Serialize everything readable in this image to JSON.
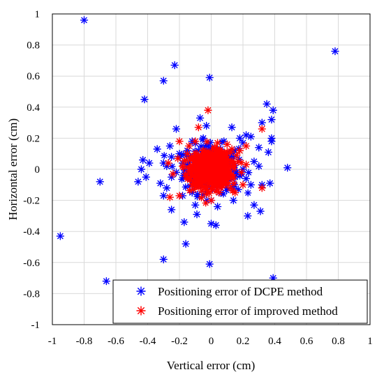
{
  "chart_data": {
    "type": "scatter",
    "xlabel": "Vertical error (cm)",
    "ylabel": "Horizontal error (cm)",
    "xlim": [
      -1,
      1
    ],
    "ylim": [
      -1,
      1
    ],
    "x_ticks": [
      "-1",
      "-0.8",
      "-0.6",
      "-0.4",
      "-0.2",
      "0",
      "0.2",
      "0.4",
      "0.6",
      "0.8",
      "1"
    ],
    "y_ticks": [
      "1",
      "0.8",
      "0.6",
      "0.4",
      "0.2",
      "0",
      "-0.2",
      "-0.4",
      "-0.6",
      "-0.8",
      "-1"
    ],
    "grid": true,
    "legend_position": "bottom-right",
    "series": [
      {
        "name": "Positioning error of DCPE method",
        "color": "#0000ff",
        "marker": "asterisk",
        "points": [
          [
            -0.8,
            0.96
          ],
          [
            -0.23,
            0.67
          ],
          [
            -0.3,
            0.57
          ],
          [
            -0.01,
            0.59
          ],
          [
            -0.42,
            0.45
          ],
          [
            0.78,
            0.76
          ],
          [
            0.35,
            0.42
          ],
          [
            0.39,
            0.38
          ],
          [
            0.32,
            0.3
          ],
          [
            0.38,
            0.32
          ],
          [
            0.13,
            0.27
          ],
          [
            -0.22,
            0.26
          ],
          [
            0.38,
            0.2
          ],
          [
            0.38,
            0.18
          ],
          [
            0.36,
            0.11
          ],
          [
            0.48,
            0.01
          ],
          [
            -0.07,
            0.33
          ],
          [
            -0.03,
            0.28
          ],
          [
            0.22,
            0.22
          ],
          [
            0.25,
            0.21
          ],
          [
            0.18,
            0.2
          ],
          [
            0.3,
            0.14
          ],
          [
            -0.26,
            0.15
          ],
          [
            -0.34,
            0.13
          ],
          [
            -0.43,
            0.06
          ],
          [
            -0.39,
            0.04
          ],
          [
            -0.44,
            0.0
          ],
          [
            -0.3,
            0.04
          ],
          [
            -0.28,
            0.02
          ],
          [
            -0.46,
            -0.08
          ],
          [
            -0.41,
            -0.05
          ],
          [
            -0.32,
            -0.09
          ],
          [
            -0.7,
            -0.08
          ],
          [
            -0.25,
            -0.05
          ],
          [
            -0.3,
            -0.17
          ],
          [
            -0.18,
            -0.17
          ],
          [
            -0.25,
            -0.26
          ],
          [
            -0.1,
            -0.23
          ],
          [
            -0.09,
            -0.29
          ],
          [
            -0.17,
            -0.34
          ],
          [
            0.0,
            -0.35
          ],
          [
            0.03,
            -0.36
          ],
          [
            0.04,
            -0.24
          ],
          [
            0.14,
            -0.2
          ],
          [
            0.23,
            -0.3
          ],
          [
            0.27,
            -0.23
          ],
          [
            0.31,
            -0.27
          ],
          [
            0.37,
            -0.09
          ],
          [
            0.32,
            -0.1
          ],
          [
            0.25,
            -0.1
          ],
          [
            -0.16,
            -0.48
          ],
          [
            -0.3,
            -0.58
          ],
          [
            -0.01,
            -0.61
          ],
          [
            -0.66,
            -0.72
          ],
          [
            -0.95,
            -0.43
          ],
          [
            0.39,
            -0.7
          ],
          [
            0.2,
            0.17
          ],
          [
            0.15,
            0.12
          ],
          [
            -0.15,
            0.12
          ],
          [
            -0.2,
            0.1
          ],
          [
            -0.12,
            0.18
          ],
          [
            0.08,
            0.18
          ],
          [
            -0.05,
            0.2
          ],
          [
            0.27,
            0.05
          ],
          [
            0.2,
            0.0
          ],
          [
            0.22,
            -0.06
          ],
          [
            -0.22,
            -0.02
          ],
          [
            -0.18,
            0.04
          ],
          [
            0.17,
            -0.13
          ],
          [
            -0.12,
            -0.15
          ],
          [
            0.0,
            -0.2
          ],
          [
            0.1,
            -0.12
          ],
          [
            -0.08,
            0.12
          ],
          [
            0.1,
            0.1
          ],
          [
            -0.25,
            0.08
          ],
          [
            0.15,
            -0.05
          ],
          [
            0.12,
            0.05
          ],
          [
            -0.1,
            -0.08
          ],
          [
            -0.15,
            -0.05
          ],
          [
            0.05,
            -0.15
          ],
          [
            -0.02,
            0.15
          ],
          [
            0.06,
            0.13
          ],
          [
            0.3,
            0.02
          ],
          [
            -0.28,
            -0.12
          ]
        ]
      },
      {
        "name": "Positioning error of improved method",
        "color": "#ff0000",
        "marker": "asterisk",
        "points": [
          [
            -0.02,
            0.38
          ],
          [
            -0.08,
            0.27
          ],
          [
            -0.2,
            0.18
          ],
          [
            0.22,
            0.15
          ],
          [
            0.32,
            0.26
          ],
          [
            -0.27,
            0.04
          ],
          [
            -0.24,
            -0.03
          ],
          [
            -0.26,
            -0.18
          ],
          [
            -0.2,
            -0.17
          ],
          [
            0.12,
            -0.12
          ],
          [
            0.2,
            -0.1
          ],
          [
            0.32,
            -0.12
          ],
          [
            0.0,
            -0.2
          ],
          [
            -0.1,
            0.18
          ],
          [
            0.1,
            0.16
          ],
          [
            0.17,
            0.05
          ],
          [
            -0.15,
            0.1
          ],
          [
            -0.12,
            -0.1
          ],
          [
            0.05,
            -0.15
          ],
          [
            -0.05,
            0.12
          ],
          [
            0.08,
            0.1
          ],
          [
            0.14,
            -0.05
          ],
          [
            -0.16,
            -0.03
          ],
          [
            0.02,
            0.14
          ],
          [
            -0.06,
            -0.14
          ],
          [
            0.11,
            -0.09
          ],
          [
            -0.13,
            0.06
          ],
          [
            0.16,
            0.09
          ],
          [
            0.04,
            -0.1
          ],
          [
            -0.1,
            0.04
          ],
          [
            0.07,
            0.06
          ],
          [
            -0.04,
            0.07
          ],
          [
            0.05,
            0.03
          ],
          [
            -0.07,
            -0.04
          ],
          [
            0.0,
            0.05
          ],
          [
            0.02,
            -0.06
          ],
          [
            -0.02,
            0.02
          ],
          [
            0.09,
            -0.02
          ],
          [
            -0.09,
            0.1
          ],
          [
            0.06,
            -0.12
          ],
          [
            -0.11,
            -0.13
          ],
          [
            0.13,
            0.13
          ],
          [
            -0.18,
            0.02
          ],
          [
            0.19,
            -0.02
          ],
          [
            0.0,
            0.0
          ],
          [
            0.03,
            0.01
          ],
          [
            -0.03,
            -0.02
          ],
          [
            0.22,
            0.03
          ],
          [
            -0.21,
            0.07
          ],
          [
            0.04,
            0.17
          ],
          [
            -0.03,
            -0.16
          ],
          [
            0.15,
            -0.15
          ],
          [
            -0.14,
            0.15
          ],
          [
            0.18,
            0.12
          ]
        ]
      }
    ]
  }
}
